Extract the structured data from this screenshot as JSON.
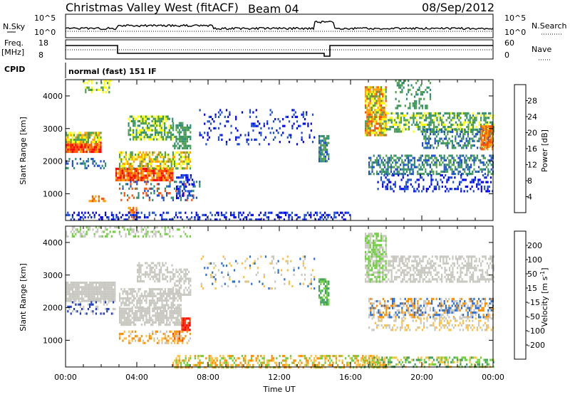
{
  "header": {
    "station": "Christmas Valley West (fitACF)",
    "beam": "Beam 04",
    "date": "08/Sep/2012"
  },
  "top_panels": {
    "nsky_label": "N.Sky",
    "nsky_ticks": [
      "10^5",
      "10^0"
    ],
    "nsearch_label": "N.Search",
    "nsearch_ticks": [
      "10^5",
      "10^0"
    ],
    "freq_label": "Freq.",
    "freq_unit": "[MHz]",
    "freq_ticks": [
      "18",
      "8"
    ],
    "nave_label": "Nave",
    "nave_ticks": [
      "60",
      "0"
    ],
    "cpid_label": "CPID",
    "cpid_value": "normal (fast) 151 IF"
  },
  "chart_data": [
    {
      "type": "heatmap",
      "name": "power",
      "ylabel": "Slant Range [km]",
      "xlabel": "",
      "ylim": [
        180,
        4500
      ],
      "xlim": [
        0,
        24
      ],
      "yticks": [
        1000,
        2000,
        3000,
        4000
      ],
      "colorbar": {
        "label": "Power [dB]",
        "ticks": [
          "4",
          "8",
          "12",
          "16",
          "20",
          "24",
          "28"
        ],
        "colors": [
          "#0000ff",
          "#1f4fd0",
          "#2f8f70",
          "#4f9f4f",
          "#ffff00",
          "#ff9f00",
          "#ff4f00",
          "#ff0000"
        ]
      },
      "regions": [
        {
          "t0": 0.0,
          "t1": 2.0,
          "r0": 2300,
          "r1": 2600,
          "dens": 0.95,
          "pal": [
            "#ff0000",
            "#ff4f00",
            "#ff9f00"
          ]
        },
        {
          "t0": 0.0,
          "t1": 2.0,
          "r0": 2600,
          "r1": 2900,
          "dens": 0.85,
          "pal": [
            "#ff9f00",
            "#ffff00",
            "#4f9f4f"
          ]
        },
        {
          "t0": 0.0,
          "t1": 2.3,
          "r0": 1800,
          "r1": 2100,
          "dens": 0.35,
          "pal": [
            "#2f8f70",
            "#1f4fd0"
          ]
        },
        {
          "t0": 1.3,
          "t1": 2.3,
          "r0": 750,
          "r1": 950,
          "dens": 0.5,
          "pal": [
            "#ff4f00",
            "#ff9f00"
          ]
        },
        {
          "t0": 1.0,
          "t1": 2.5,
          "r0": 4100,
          "r1": 4500,
          "dens": 0.4,
          "pal": [
            "#ffff00",
            "#4f9f4f"
          ]
        },
        {
          "t0": 2.8,
          "t1": 6.0,
          "r0": 1400,
          "r1": 1800,
          "dens": 0.9,
          "pal": [
            "#ff0000",
            "#ff4f00",
            "#ff9f00"
          ]
        },
        {
          "t0": 3.0,
          "t1": 7.0,
          "r0": 1800,
          "r1": 2300,
          "dens": 0.7,
          "pal": [
            "#ff9f00",
            "#ffff00",
            "#4f9f4f"
          ]
        },
        {
          "t0": 3.5,
          "t1": 6.0,
          "r0": 2700,
          "r1": 3400,
          "dens": 0.65,
          "pal": [
            "#ffff00",
            "#4f9f4f",
            "#2f8f70"
          ]
        },
        {
          "t0": 6.0,
          "t1": 7.0,
          "r0": 2400,
          "r1": 3200,
          "dens": 0.6,
          "pal": [
            "#4f9f4f",
            "#2f8f70"
          ]
        },
        {
          "t0": 3.0,
          "t1": 7.5,
          "r0": 800,
          "r1": 1400,
          "dens": 0.25,
          "pal": [
            "#1f4fd0",
            "#2f8f70",
            "#ff4f00"
          ]
        },
        {
          "t0": 6.2,
          "t1": 7.2,
          "r0": 900,
          "r1": 1600,
          "dens": 0.4,
          "pal": [
            "#1f4fd0",
            "#0000ff"
          ]
        },
        {
          "t0": 3.5,
          "t1": 4.0,
          "r0": 200,
          "r1": 600,
          "dens": 0.6,
          "pal": [
            "#ff4f00",
            "#ff9f00"
          ]
        },
        {
          "t0": 7.5,
          "t1": 14.0,
          "r0": 2500,
          "r1": 3600,
          "dens": 0.15,
          "pal": [
            "#0000ff",
            "#1f4fd0"
          ]
        },
        {
          "t0": 14.2,
          "t1": 14.8,
          "r0": 2000,
          "r1": 2800,
          "dens": 0.7,
          "pal": [
            "#2f8f70",
            "#4f9f4f",
            "#1f4fd0"
          ]
        },
        {
          "t0": 0.0,
          "t1": 16.0,
          "r0": 200,
          "r1": 450,
          "dens": 0.35,
          "pal": [
            "#0000ff",
            "#1f4fd0"
          ]
        },
        {
          "t0": 16.8,
          "t1": 18.0,
          "r0": 2800,
          "r1": 4300,
          "dens": 0.8,
          "pal": [
            "#ff4f00",
            "#ff9f00",
            "#ffff00",
            "#4f9f4f"
          ]
        },
        {
          "t0": 17.0,
          "t1": 24.0,
          "r0": 1600,
          "r1": 2200,
          "dens": 0.55,
          "pal": [
            "#2f8f70",
            "#4f9f4f",
            "#1f4fd0"
          ]
        },
        {
          "t0": 18.0,
          "t1": 24.0,
          "r0": 2900,
          "r1": 3500,
          "dens": 0.55,
          "pal": [
            "#4f9f4f",
            "#ffff00",
            "#2f8f70"
          ]
        },
        {
          "t0": 20.0,
          "t1": 24.0,
          "r0": 2400,
          "r1": 3000,
          "dens": 0.5,
          "pal": [
            "#4f9f4f",
            "#2f8f70",
            "#1f4fd0"
          ]
        },
        {
          "t0": 17.5,
          "t1": 24.0,
          "r0": 1100,
          "r1": 1600,
          "dens": 0.3,
          "pal": [
            "#1f4fd0",
            "#0000ff"
          ]
        },
        {
          "t0": 23.3,
          "t1": 24.0,
          "r0": 2400,
          "r1": 3100,
          "dens": 0.8,
          "pal": [
            "#ff4f00",
            "#ff9f00"
          ]
        },
        {
          "t0": 18.5,
          "t1": 20.5,
          "r0": 3600,
          "r1": 4500,
          "dens": 0.3,
          "pal": [
            "#4f9f4f",
            "#2f8f70"
          ]
        }
      ]
    },
    {
      "type": "heatmap",
      "name": "velocity",
      "ylabel": "Slant Range [km]",
      "xlabel": "Time UT",
      "ylim": [
        180,
        4500
      ],
      "xlim": [
        0,
        24
      ],
      "yticks": [
        1000,
        2000,
        3000,
        4000
      ],
      "xtick_labels": [
        "00:00",
        "04:00",
        "08:00",
        "12:00",
        "16:00",
        "20:00",
        "00:00"
      ],
      "xticks": [
        0,
        4,
        8,
        12,
        16,
        20,
        24
      ],
      "colorbar": {
        "label": "Velocity [m s-1]",
        "label_parts": [
          "Velocity [m s",
          "-1",
          "]"
        ],
        "ticks": [
          "200",
          "100",
          "50",
          "15",
          "-15",
          "-50",
          "-100",
          "-200"
        ],
        "colors": [
          "#1f3fbf",
          "#2f6fcf",
          "#3f9f5f",
          "#6fcf3f",
          "#c8c8c0",
          "#ffbf3f",
          "#ff8f00",
          "#ff3f00",
          "#ff0000"
        ]
      },
      "regions": [
        {
          "t0": 0.0,
          "t1": 2.8,
          "r0": 2200,
          "r1": 2800,
          "dens": 0.9,
          "pal": [
            "#c8c8c0"
          ]
        },
        {
          "t0": 0.0,
          "t1": 2.8,
          "r0": 1800,
          "r1": 2200,
          "dens": 0.25,
          "pal": [
            "#c8c8c0",
            "#1f3fbf"
          ]
        },
        {
          "t0": 3.0,
          "t1": 6.5,
          "r0": 1500,
          "r1": 2000,
          "dens": 0.8,
          "pal": [
            "#c8c8c0"
          ]
        },
        {
          "t0": 3.0,
          "t1": 6.5,
          "r0": 2000,
          "r1": 2600,
          "dens": 0.6,
          "pal": [
            "#c8c8c0"
          ]
        },
        {
          "t0": 4.0,
          "t1": 6.0,
          "r0": 2800,
          "r1": 3400,
          "dens": 0.5,
          "pal": [
            "#c8c8c0"
          ]
        },
        {
          "t0": 6.0,
          "t1": 7.0,
          "r0": 2400,
          "r1": 3200,
          "dens": 0.5,
          "pal": [
            "#c8c8c0"
          ]
        },
        {
          "t0": 6.5,
          "t1": 7.0,
          "r0": 1300,
          "r1": 1700,
          "dens": 0.8,
          "pal": [
            "#ff0000",
            "#ff3f00"
          ]
        },
        {
          "t0": 6.0,
          "t1": 6.6,
          "r0": 1000,
          "r1": 1300,
          "dens": 0.6,
          "pal": [
            "#ff3f00",
            "#ff8f00"
          ]
        },
        {
          "t0": 3.0,
          "t1": 7.0,
          "r0": 900,
          "r1": 1300,
          "dens": 0.3,
          "pal": [
            "#ffbf3f",
            "#ff8f00",
            "#c8c8c0"
          ]
        },
        {
          "t0": 14.2,
          "t1": 14.8,
          "r0": 2100,
          "r1": 2900,
          "dens": 0.7,
          "pal": [
            "#6fcf3f",
            "#3f9f5f"
          ]
        },
        {
          "t0": 7.5,
          "t1": 14.0,
          "r0": 2600,
          "r1": 3600,
          "dens": 0.12,
          "pal": [
            "#ffbf3f",
            "#c8c8c0",
            "#2f6fcf"
          ]
        },
        {
          "t0": 6.0,
          "t1": 18.0,
          "r0": 200,
          "r1": 550,
          "dens": 0.5,
          "pal": [
            "#ffbf3f",
            "#ff8f00",
            "#6fcf3f"
          ]
        },
        {
          "t0": 16.5,
          "t1": 24.0,
          "r0": 200,
          "r1": 500,
          "dens": 0.45,
          "pal": [
            "#6fcf3f",
            "#3f9f5f",
            "#ffbf3f"
          ]
        },
        {
          "t0": 16.8,
          "t1": 18.0,
          "r0": 2800,
          "r1": 4300,
          "dens": 0.7,
          "pal": [
            "#c8c8c0",
            "#6fcf3f"
          ]
        },
        {
          "t0": 18.0,
          "t1": 24.0,
          "r0": 2800,
          "r1": 3600,
          "dens": 0.5,
          "pal": [
            "#c8c8c0"
          ]
        },
        {
          "t0": 17.0,
          "t1": 24.0,
          "r0": 1700,
          "r1": 2300,
          "dens": 0.5,
          "pal": [
            "#c8c8c0",
            "#ff8f00",
            "#2f6fcf"
          ]
        },
        {
          "t0": 17.0,
          "t1": 24.0,
          "r0": 1300,
          "r1": 1700,
          "dens": 0.3,
          "pal": [
            "#c8c8c0",
            "#ffbf3f"
          ]
        },
        {
          "t0": 0.0,
          "t1": 7.0,
          "r0": 4200,
          "r1": 4500,
          "dens": 0.35,
          "pal": [
            "#c8c8c0",
            "#6fcf3f"
          ]
        }
      ]
    }
  ]
}
